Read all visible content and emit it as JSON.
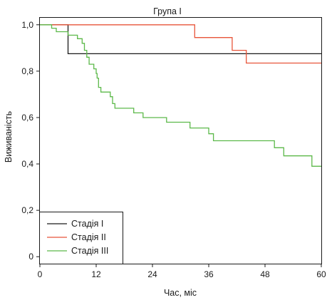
{
  "chart_data": {
    "type": "line",
    "step": true,
    "title": "Група І",
    "xlabel": "Час, міс",
    "ylabel": "Виживаність",
    "xlim": [
      0,
      60
    ],
    "ylim": [
      -0.03,
      1.03
    ],
    "xticks": [
      0,
      12,
      24,
      36,
      48,
      60
    ],
    "xtick_labels": [
      "0",
      "12",
      "24",
      "36",
      "48",
      "60"
    ],
    "yticks": [
      0,
      0.2,
      0.4,
      0.6,
      0.8,
      1.0
    ],
    "ytick_labels": [
      "0",
      "0,2",
      "0,4",
      "0,6",
      "0,8",
      "1,0"
    ],
    "grid": false,
    "legend_position": "bottom-left",
    "series": [
      {
        "name": "Стадія І",
        "color": "#1a1a1a",
        "points": [
          [
            0,
            1.0
          ],
          [
            6,
            1.0
          ],
          [
            6,
            0.875
          ],
          [
            60,
            0.875
          ]
        ]
      },
      {
        "name": "Стадія ІІ",
        "color": "#e8553a",
        "points": [
          [
            0,
            1.0
          ],
          [
            33,
            1.0
          ],
          [
            33,
            0.945
          ],
          [
            41,
            0.945
          ],
          [
            41,
            0.89
          ],
          [
            44,
            0.89
          ],
          [
            44,
            0.835
          ],
          [
            60,
            0.835
          ]
        ]
      },
      {
        "name": "Стадія ІІІ",
        "color": "#5cb94a",
        "points": [
          [
            0,
            1.0
          ],
          [
            2.5,
            1.0
          ],
          [
            2.5,
            0.985
          ],
          [
            3.5,
            0.985
          ],
          [
            3.5,
            0.97
          ],
          [
            6,
            0.97
          ],
          [
            6,
            0.955
          ],
          [
            8,
            0.955
          ],
          [
            8,
            0.94
          ],
          [
            9,
            0.94
          ],
          [
            9,
            0.92
          ],
          [
            9.5,
            0.92
          ],
          [
            9.5,
            0.89
          ],
          [
            10,
            0.89
          ],
          [
            10,
            0.86
          ],
          [
            10.5,
            0.86
          ],
          [
            10.5,
            0.83
          ],
          [
            11.5,
            0.83
          ],
          [
            11.5,
            0.81
          ],
          [
            12,
            0.81
          ],
          [
            12,
            0.79
          ],
          [
            12.2,
            0.79
          ],
          [
            12.2,
            0.77
          ],
          [
            12.5,
            0.77
          ],
          [
            12.5,
            0.73
          ],
          [
            13,
            0.73
          ],
          [
            13,
            0.71
          ],
          [
            15,
            0.71
          ],
          [
            15,
            0.69
          ],
          [
            15.5,
            0.69
          ],
          [
            15.5,
            0.66
          ],
          [
            16,
            0.66
          ],
          [
            16,
            0.64
          ],
          [
            20,
            0.64
          ],
          [
            20,
            0.62
          ],
          [
            22,
            0.62
          ],
          [
            22,
            0.6
          ],
          [
            27,
            0.6
          ],
          [
            27,
            0.58
          ],
          [
            32,
            0.58
          ],
          [
            32,
            0.555
          ],
          [
            36,
            0.555
          ],
          [
            36,
            0.53
          ],
          [
            37,
            0.53
          ],
          [
            37,
            0.5
          ],
          [
            50,
            0.5
          ],
          [
            50,
            0.47
          ],
          [
            52,
            0.47
          ],
          [
            52,
            0.435
          ],
          [
            58,
            0.435
          ],
          [
            58,
            0.39
          ],
          [
            60,
            0.39
          ]
        ]
      }
    ]
  }
}
